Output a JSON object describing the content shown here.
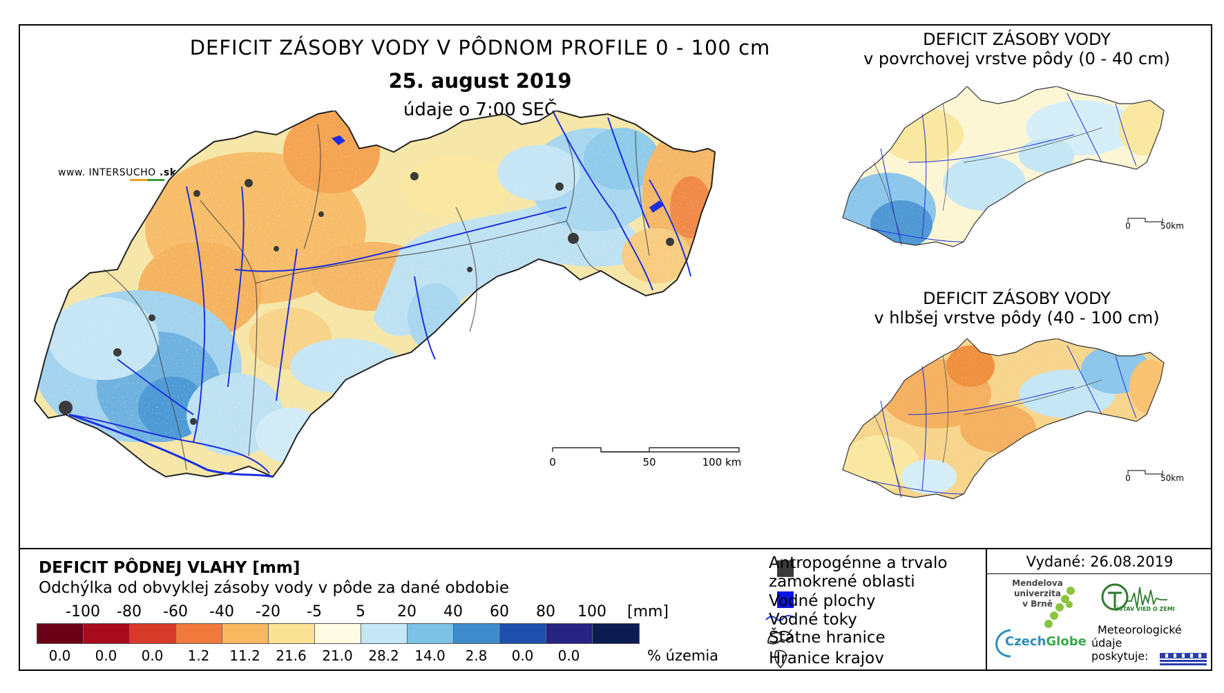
{
  "title": {
    "main": "DEFICIT ZÁSOBY VODY V PÔDNOM PROFILE 0 - 100 cm",
    "date": "25. august 2019",
    "time": "údaje o 7:00 SEČ"
  },
  "watermark": {
    "prefix": "www. ",
    "brand_a": "INTER",
    "brand_b": "SUCHO",
    "suffix": " .sk"
  },
  "inset_top": {
    "title_line1": "DEFICIT ZÁSOBY VODY",
    "title_line2": "v povrchovej vrstve pôdy (0 - 40 cm)",
    "scale_start": "0",
    "scale_end": "50km"
  },
  "inset_bottom": {
    "title_line1": "DEFICIT ZÁSOBY VODY",
    "title_line2": "v hlbšej vrstve pôdy (40 - 100 cm)",
    "scale_start": "0",
    "scale_end": "50km"
  },
  "main_scale": {
    "labels": [
      "0",
      "50",
      "100 km"
    ]
  },
  "legend": {
    "title": "DEFICIT PÔDNEJ VLAHY [mm]",
    "subtitle": "Odchýlka od obvyklej zásoby vody v pôde za dané obdobie",
    "unit": "[mm]",
    "pct_label": "% územia",
    "thresholds": [
      "-100",
      "-80",
      "-60",
      "-40",
      "-20",
      "-5",
      "5",
      "20",
      "40",
      "60",
      "80",
      "100"
    ],
    "classes": [
      {
        "color": "#6b0016",
        "pct": "0.0"
      },
      {
        "color": "#a80a1e",
        "pct": "0.0"
      },
      {
        "color": "#d83a2a",
        "pct": "0.0"
      },
      {
        "color": "#f07a3c",
        "pct": "1.2"
      },
      {
        "color": "#f8b860",
        "pct": "11.2"
      },
      {
        "color": "#f9e294",
        "pct": "21.6"
      },
      {
        "color": "#fefce4",
        "pct": "21.0"
      },
      {
        "color": "#c4e6f5",
        "pct": "28.2"
      },
      {
        "color": "#7cc2e6",
        "pct": "14.0"
      },
      {
        "color": "#3f8ccc",
        "pct": "2.8"
      },
      {
        "color": "#1e4fac",
        "pct": "0.0"
      },
      {
        "color": "#262383",
        "pct": "0.0"
      },
      {
        "color": "#0c1b52",
        "pct": ""
      }
    ]
  },
  "symbols": {
    "urban": "Antropogénne a trvalo",
    "urban2": "zamokrené oblasti",
    "water_bodies": "Vodné plochy",
    "rivers": "Vodné toky",
    "state_border": "Štátne hranice",
    "region_border": "Hranice krajov"
  },
  "issued": "Vydané: 26.08.2019",
  "credits": {
    "mendel_1": "Mendelova",
    "mendel_2": "univerzita",
    "mendel_3": "v Brně",
    "czechglobe_a": "Czech",
    "czechglobe_b": "Globe",
    "uvz": "ÚSTAV VIED O ZEMI",
    "meteo_1": "Meteorologické",
    "meteo_2": "údaje",
    "meteo_3": "poskytuje:"
  },
  "colors": {
    "river": "#1a2ee0",
    "urban": "#3a3a3a"
  }
}
